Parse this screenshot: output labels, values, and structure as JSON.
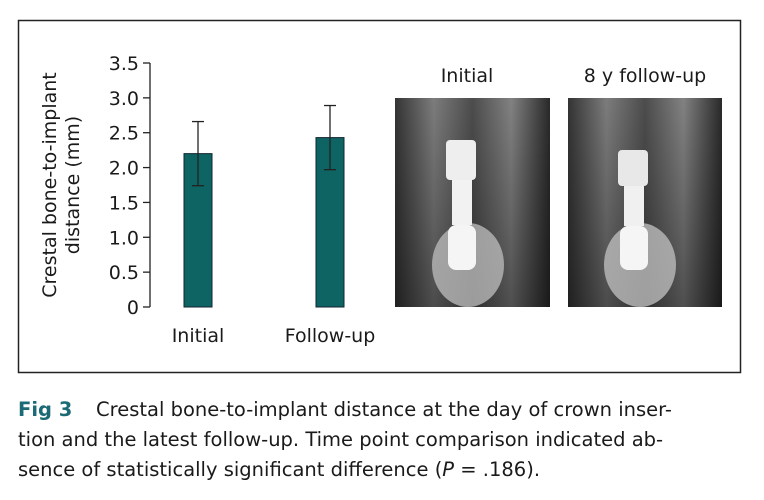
{
  "chart_data": {
    "type": "bar",
    "y_label": "Crestal bone-to-implant\ndistance (mm)",
    "categories": [
      "Initial",
      "Follow-up"
    ],
    "values": [
      2.2,
      2.43
    ],
    "errors": [
      0.46,
      0.46
    ],
    "color": "#0e6462",
    "ylim": [
      0,
      3.5
    ],
    "yticks": [
      0,
      0.5,
      {
        "value": 1,
        "label": "1.0"
      },
      1.5,
      {
        "value": 2,
        "label": "2.0"
      },
      2.5,
      {
        "value": 3,
        "label": "3.0"
      },
      3.5
    ],
    "grid": false
  },
  "images": [
    {
      "label": "Initial"
    },
    {
      "label": "8 y follow-up"
    }
  ],
  "caption": {
    "label": "Fig 3",
    "lines": [
      "Crestal bone-to-implant distance at the day of crown inser-",
      "tion and the latest follow-up. Time point comparison indicated ab-"
    ],
    "last_line": {
      "before": "sence of statistically significant difference (",
      "italic": "P",
      "after": " = .186)."
    }
  }
}
